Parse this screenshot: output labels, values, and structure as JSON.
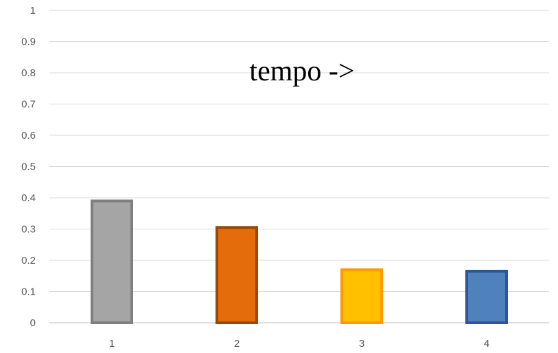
{
  "chart_data": {
    "type": "bar",
    "categories": [
      "1",
      "2",
      "3",
      "4"
    ],
    "values": [
      0.39,
      0.305,
      0.17,
      0.165
    ],
    "ylim": [
      0,
      1
    ],
    "yticks": [
      "0",
      "0.1",
      "0.2",
      "0.3",
      "0.4",
      "0.5",
      "0.6",
      "0.7",
      "0.8",
      "0.9",
      "1"
    ],
    "grid": true,
    "annotation": "tempo ->",
    "colors": {
      "fills": [
        "#a5a5a5",
        "#e46c0a",
        "#ffc000",
        "#4f81bd"
      ],
      "borders": [
        "#7f7f7f",
        "#984807",
        "#ff9900",
        "#2e5597"
      ],
      "gridline": "#d9d9d9",
      "axis": "#bfbfbf"
    }
  }
}
